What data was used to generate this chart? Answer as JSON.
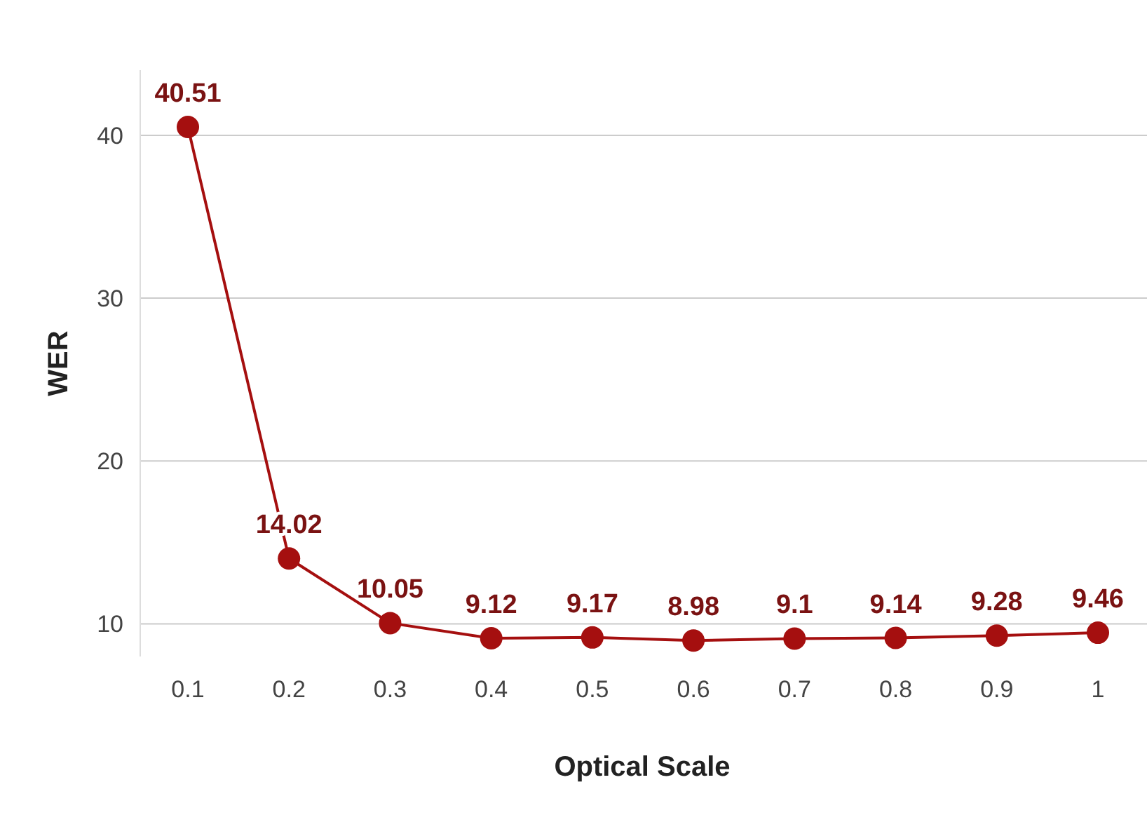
{
  "chart_data": {
    "type": "line",
    "xlabel": "Optical Scale",
    "ylabel": "WER",
    "categories": [
      "0.1",
      "0.2",
      "0.3",
      "0.4",
      "0.5",
      "0.6",
      "0.7",
      "0.8",
      "0.9",
      "1"
    ],
    "series": [
      {
        "color": "#a50f0f",
        "values": [
          40.51,
          14.02,
          10.05,
          9.12,
          9.17,
          8.98,
          9.1,
          9.14,
          9.28,
          9.46
        ]
      }
    ],
    "ylim": [
      8,
      44
    ],
    "yticks": [
      10,
      20,
      30,
      40
    ],
    "grid": "y",
    "marker": "circle",
    "line_style": "solid",
    "data_labels": true
  }
}
